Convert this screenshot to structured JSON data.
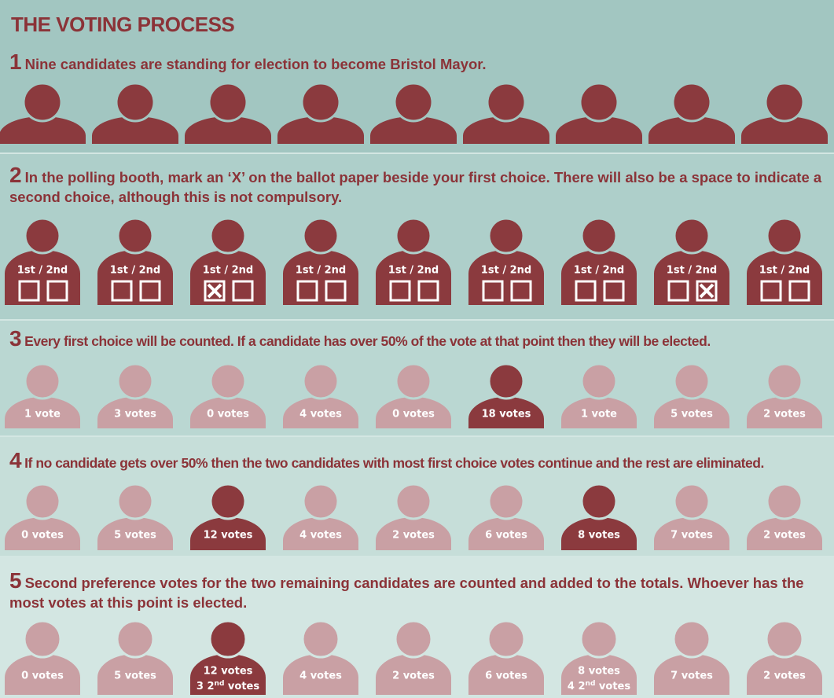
{
  "header": {
    "title": "THE VOTING PROCESS"
  },
  "steps": [
    {
      "number": "1",
      "text": "Nine candidates are standing for election to become Bristol Mayor."
    },
    {
      "number": "2",
      "text": "In the polling booth, mark an ‘X’ on the ballot paper beside your first choice. There will also be a space to indicate a second choice, although this is not compulsory.",
      "ballot_label": "1st / 2nd",
      "marks": [
        null,
        null,
        "first",
        null,
        null,
        null,
        null,
        "second",
        null
      ]
    },
    {
      "number": "3",
      "text": "Every first choice will be counted. If a candidate has over 50% of the vote at that point then they will be elected.",
      "candidates": [
        {
          "label": "1 vote",
          "highlight": false
        },
        {
          "label": "3 votes",
          "highlight": false
        },
        {
          "label": "0 votes",
          "highlight": false
        },
        {
          "label": "4 votes",
          "highlight": false
        },
        {
          "label": "0 votes",
          "highlight": false
        },
        {
          "label": "18 votes",
          "highlight": true
        },
        {
          "label": "1 vote",
          "highlight": false
        },
        {
          "label": "5 votes",
          "highlight": false
        },
        {
          "label": "2 votes",
          "highlight": false
        }
      ]
    },
    {
      "number": "4",
      "text": "If no candidate gets over 50% then the two candidates with most first choice votes continue and the rest are eliminated.",
      "candidates": [
        {
          "label": "0 votes",
          "highlight": false
        },
        {
          "label": "5 votes",
          "highlight": false
        },
        {
          "label": "12 votes",
          "highlight": true
        },
        {
          "label": "4 votes",
          "highlight": false
        },
        {
          "label": "2 votes",
          "highlight": false
        },
        {
          "label": "6 votes",
          "highlight": false
        },
        {
          "label": "8 votes",
          "highlight": true
        },
        {
          "label": "7 votes",
          "highlight": false
        },
        {
          "label": "2 votes",
          "highlight": false
        }
      ]
    },
    {
      "number": "5",
      "text": "Second preference votes for the two remaining candidates are counted and added to the totals. Whoever has the most votes at this point is elected.",
      "candidates": [
        {
          "label": "0 votes",
          "highlight": false
        },
        {
          "label": "5 votes",
          "highlight": false
        },
        {
          "label": "12 votes",
          "highlight": true,
          "second_line": [
            "3 2",
            "nd",
            " votes"
          ]
        },
        {
          "label": "4 votes",
          "highlight": false
        },
        {
          "label": "2 votes",
          "highlight": false
        },
        {
          "label": "6 votes",
          "highlight": false
        },
        {
          "label": "8 votes",
          "highlight": false,
          "second_line": [
            "4 2",
            "nd",
            " votes"
          ]
        },
        {
          "label": "7 votes",
          "highlight": false
        },
        {
          "label": "2 votes",
          "highlight": false
        }
      ]
    }
  ]
}
